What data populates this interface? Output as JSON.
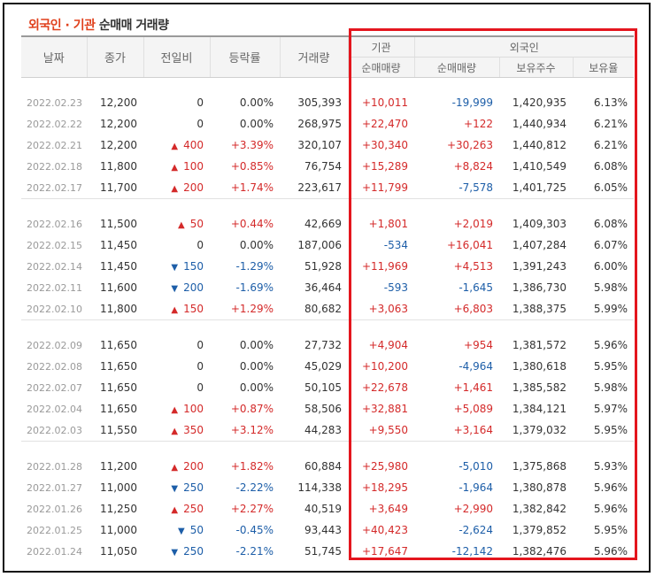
{
  "title": {
    "part1": "외국인 · 기관",
    "part2": " 순매매 거래량"
  },
  "headers": {
    "date": "날짜",
    "close": "종가",
    "change": "전일비",
    "rate": "등락률",
    "volume": "거래량",
    "inst_group": "기관",
    "foreign_group": "외국인",
    "inst_net": "순매매량",
    "foreign_net": "순매매량",
    "foreign_hold": "보유주수",
    "foreign_ratio": "보유율"
  },
  "colors": {
    "up": "#d42a2a",
    "down": "#1d5ea8",
    "highlight_box": "#e4161e"
  },
  "groups": [
    {
      "rows": [
        {
          "date": "2022.02.23",
          "close": "12,200",
          "dir": "none",
          "change": "0",
          "rate": "0.00%",
          "volume": "305,393",
          "inst": "+10,011",
          "foreign": "-19,999",
          "hold": "1,420,935",
          "ratio": "6.13%"
        },
        {
          "date": "2022.02.22",
          "close": "12,200",
          "dir": "none",
          "change": "0",
          "rate": "0.00%",
          "volume": "268,975",
          "inst": "+22,470",
          "foreign": "+122",
          "hold": "1,440,934",
          "ratio": "6.21%"
        },
        {
          "date": "2022.02.21",
          "close": "12,200",
          "dir": "up",
          "change": "400",
          "rate": "+3.39%",
          "volume": "320,107",
          "inst": "+30,340",
          "foreign": "+30,263",
          "hold": "1,440,812",
          "ratio": "6.21%"
        },
        {
          "date": "2022.02.18",
          "close": "11,800",
          "dir": "up",
          "change": "100",
          "rate": "+0.85%",
          "volume": "76,754",
          "inst": "+15,289",
          "foreign": "+8,824",
          "hold": "1,410,549",
          "ratio": "6.08%"
        },
        {
          "date": "2022.02.17",
          "close": "11,700",
          "dir": "up",
          "change": "200",
          "rate": "+1.74%",
          "volume": "223,617",
          "inst": "+11,799",
          "foreign": "-7,578",
          "hold": "1,401,725",
          "ratio": "6.05%"
        }
      ]
    },
    {
      "rows": [
        {
          "date": "2022.02.16",
          "close": "11,500",
          "dir": "up",
          "change": "50",
          "rate": "+0.44%",
          "volume": "42,669",
          "inst": "+1,801",
          "foreign": "+2,019",
          "hold": "1,409,303",
          "ratio": "6.08%"
        },
        {
          "date": "2022.02.15",
          "close": "11,450",
          "dir": "none",
          "change": "0",
          "rate": "0.00%",
          "volume": "187,006",
          "inst": "-534",
          "foreign": "+16,041",
          "hold": "1,407,284",
          "ratio": "6.07%"
        },
        {
          "date": "2022.02.14",
          "close": "11,450",
          "dir": "down",
          "change": "150",
          "rate": "-1.29%",
          "volume": "51,928",
          "inst": "+11,969",
          "foreign": "+4,513",
          "hold": "1,391,243",
          "ratio": "6.00%"
        },
        {
          "date": "2022.02.11",
          "close": "11,600",
          "dir": "down",
          "change": "200",
          "rate": "-1.69%",
          "volume": "36,464",
          "inst": "-593",
          "foreign": "-1,645",
          "hold": "1,386,730",
          "ratio": "5.98%"
        },
        {
          "date": "2022.02.10",
          "close": "11,800",
          "dir": "up",
          "change": "150",
          "rate": "+1.29%",
          "volume": "80,682",
          "inst": "+3,063",
          "foreign": "+6,803",
          "hold": "1,388,375",
          "ratio": "5.99%"
        }
      ]
    },
    {
      "rows": [
        {
          "date": "2022.02.09",
          "close": "11,650",
          "dir": "none",
          "change": "0",
          "rate": "0.00%",
          "volume": "27,732",
          "inst": "+4,904",
          "foreign": "+954",
          "hold": "1,381,572",
          "ratio": "5.96%"
        },
        {
          "date": "2022.02.08",
          "close": "11,650",
          "dir": "none",
          "change": "0",
          "rate": "0.00%",
          "volume": "45,029",
          "inst": "+10,200",
          "foreign": "-4,964",
          "hold": "1,380,618",
          "ratio": "5.95%"
        },
        {
          "date": "2022.02.07",
          "close": "11,650",
          "dir": "none",
          "change": "0",
          "rate": "0.00%",
          "volume": "50,105",
          "inst": "+22,678",
          "foreign": "+1,461",
          "hold": "1,385,582",
          "ratio": "5.98%"
        },
        {
          "date": "2022.02.04",
          "close": "11,650",
          "dir": "up",
          "change": "100",
          "rate": "+0.87%",
          "volume": "58,506",
          "inst": "+32,881",
          "foreign": "+5,089",
          "hold": "1,384,121",
          "ratio": "5.97%"
        },
        {
          "date": "2022.02.03",
          "close": "11,550",
          "dir": "up",
          "change": "350",
          "rate": "+3.12%",
          "volume": "44,283",
          "inst": "+9,550",
          "foreign": "+3,164",
          "hold": "1,379,032",
          "ratio": "5.95%"
        }
      ]
    },
    {
      "rows": [
        {
          "date": "2022.01.28",
          "close": "11,200",
          "dir": "up",
          "change": "200",
          "rate": "+1.82%",
          "volume": "60,884",
          "inst": "+25,980",
          "foreign": "-5,010",
          "hold": "1,375,868",
          "ratio": "5.93%"
        },
        {
          "date": "2022.01.27",
          "close": "11,000",
          "dir": "down",
          "change": "250",
          "rate": "-2.22%",
          "volume": "114,338",
          "inst": "+18,295",
          "foreign": "-1,964",
          "hold": "1,380,878",
          "ratio": "5.96%"
        },
        {
          "date": "2022.01.26",
          "close": "11,250",
          "dir": "up",
          "change": "250",
          "rate": "+2.27%",
          "volume": "40,519",
          "inst": "+3,649",
          "foreign": "+2,990",
          "hold": "1,382,842",
          "ratio": "5.96%"
        },
        {
          "date": "2022.01.25",
          "close": "11,000",
          "dir": "down",
          "change": "50",
          "rate": "-0.45%",
          "volume": "93,443",
          "inst": "+40,423",
          "foreign": "-2,624",
          "hold": "1,379,852",
          "ratio": "5.95%"
        },
        {
          "date": "2022.01.24",
          "close": "11,050",
          "dir": "down",
          "change": "250",
          "rate": "-2.21%",
          "volume": "51,745",
          "inst": "+17,647",
          "foreign": "-12,142",
          "hold": "1,382,476",
          "ratio": "5.96%"
        }
      ]
    }
  ]
}
